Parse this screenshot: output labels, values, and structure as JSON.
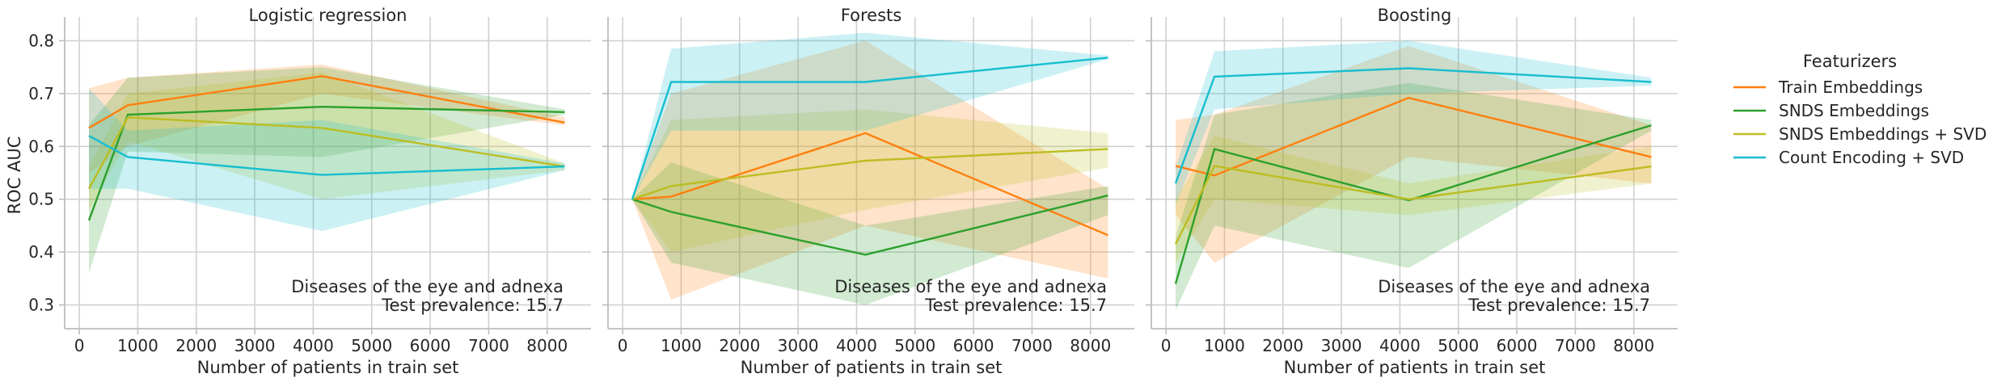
{
  "chart_data": {
    "type": "line",
    "ylabel": "ROC AUC",
    "xlabel": "Number of patients in train set",
    "x_ticks": [
      "0",
      "1000",
      "2000",
      "3000",
      "4000",
      "5000",
      "6000",
      "7000",
      "8000"
    ],
    "y_ticks": [
      "0.3",
      "0.4",
      "0.5",
      "0.6",
      "0.7",
      "0.8"
    ],
    "xlim": [
      -250,
      8750
    ],
    "ylim": [
      0.255,
      0.845
    ],
    "grid": true,
    "legend": {
      "title": "Featurizers",
      "placement": "right",
      "entries": [
        {
          "label": "Train Embeddings",
          "color": "#ff7f0e"
        },
        {
          "label": "SNDS Embeddings",
          "color": "#2ca02c"
        },
        {
          "label": "SNDS Embeddings + SVD",
          "color": "#bcbd22"
        },
        {
          "label": "Count Encoding + SVD",
          "color": "#17becf"
        }
      ]
    },
    "x": [
      165,
      830,
      4150,
      8300
    ],
    "panels": [
      {
        "title": "Logistic regression",
        "annotation": [
          "Diseases of the eye and adnexa",
          "Test prevalence: 15.7"
        ],
        "series": [
          {
            "name": "Train Embeddings",
            "values": [
              0.635,
              0.678,
              0.733,
              0.645
            ],
            "lower": [
              0.55,
              0.6,
              0.7,
              0.64
            ],
            "upper": [
              0.71,
              0.73,
              0.755,
              0.655
            ]
          },
          {
            "name": "SNDS Embeddings",
            "values": [
              0.46,
              0.66,
              0.675,
              0.665
            ],
            "lower": [
              0.36,
              0.59,
              0.58,
              0.66
            ],
            "upper": [
              0.64,
              0.73,
              0.75,
              0.67
            ]
          },
          {
            "name": "SNDS Embeddings + SVD",
            "values": [
              0.52,
              0.655,
              0.635,
              0.562
            ],
            "lower": [
              0.48,
              0.61,
              0.5,
              0.555
            ],
            "upper": [
              0.56,
              0.7,
              0.74,
              0.568
            ]
          },
          {
            "name": "Count Encoding + SVD",
            "values": [
              0.62,
              0.58,
              0.546,
              0.562
            ],
            "lower": [
              0.52,
              0.52,
              0.44,
              0.555
            ],
            "upper": [
              0.71,
              0.63,
              0.65,
              0.568
            ]
          }
        ]
      },
      {
        "title": "Forests",
        "annotation": [
          "Diseases of the eye and adnexa",
          "Test prevalence: 15.7"
        ],
        "series": [
          {
            "name": "Train Embeddings",
            "values": [
              0.5,
              0.505,
              0.625,
              0.432
            ],
            "lower": [
              0.5,
              0.31,
              0.45,
              0.35
            ],
            "upper": [
              0.5,
              0.7,
              0.8,
              0.52
            ]
          },
          {
            "name": "SNDS Embeddings",
            "values": [
              0.5,
              0.476,
              0.395,
              0.507
            ],
            "lower": [
              0.5,
              0.38,
              0.3,
              0.47
            ],
            "upper": [
              0.5,
              0.57,
              0.45,
              0.525
            ]
          },
          {
            "name": "SNDS Embeddings + SVD",
            "values": [
              0.5,
              0.525,
              0.573,
              0.595
            ],
            "lower": [
              0.5,
              0.4,
              0.48,
              0.56
            ],
            "upper": [
              0.5,
              0.65,
              0.67,
              0.625
            ]
          },
          {
            "name": "Count Encoding + SVD",
            "values": [
              0.5,
              0.722,
              0.722,
              0.768
            ],
            "lower": [
              0.5,
              0.63,
              0.63,
              0.765
            ],
            "upper": [
              0.5,
              0.785,
              0.815,
              0.772
            ]
          }
        ]
      },
      {
        "title": "Boosting",
        "annotation": [
          "Diseases of the eye and adnexa",
          "Test prevalence: 15.7"
        ],
        "series": [
          {
            "name": "Train Embeddings",
            "values": [
              0.563,
              0.545,
              0.692,
              0.58
            ],
            "lower": [
              0.47,
              0.38,
              0.58,
              0.53
            ],
            "upper": [
              0.65,
              0.66,
              0.79,
              0.64
            ]
          },
          {
            "name": "SNDS Embeddings",
            "values": [
              0.34,
              0.595,
              0.498,
              0.64
            ],
            "lower": [
              0.29,
              0.45,
              0.37,
              0.63
            ],
            "upper": [
              0.43,
              0.66,
              0.72,
              0.65
            ]
          },
          {
            "name": "SNDS Embeddings + SVD",
            "values": [
              0.415,
              0.563,
              0.5,
              0.562
            ],
            "lower": [
              0.38,
              0.5,
              0.47,
              0.53
            ],
            "upper": [
              0.5,
              0.62,
              0.53,
              0.6
            ]
          },
          {
            "name": "Count Encoding + SVD",
            "values": [
              0.53,
              0.732,
              0.748,
              0.722
            ],
            "lower": [
              0.49,
              0.67,
              0.7,
              0.715
            ],
            "upper": [
              0.56,
              0.78,
              0.8,
              0.73
            ]
          }
        ]
      }
    ]
  }
}
